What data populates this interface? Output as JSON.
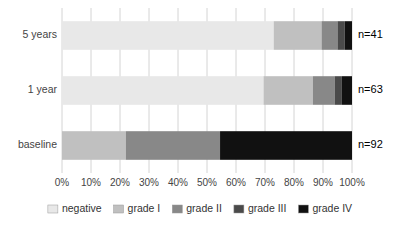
{
  "chart_data": {
    "type": "bar",
    "orientation": "horizontal",
    "stacked": true,
    "categories": [
      "baseline",
      "1 year",
      "5 years"
    ],
    "annotations": [
      "n=92",
      "n=63",
      "n=41"
    ],
    "series": [
      {
        "name": "negative",
        "color": "#e8e8e8",
        "values": [
          0.0,
          0.695,
          0.73
        ]
      },
      {
        "name": "grade I",
        "color": "#c0c0c0",
        "values": [
          0.22,
          0.17,
          0.165
        ]
      },
      {
        "name": "grade II",
        "color": "#888888",
        "values": [
          0.325,
          0.075,
          0.055
        ]
      },
      {
        "name": "grade III",
        "color": "#4a4a4a",
        "values": [
          0.0,
          0.025,
          0.025
        ]
      },
      {
        "name": "grade IV",
        "color": "#111111",
        "values": [
          0.455,
          0.035,
          0.025
        ]
      }
    ],
    "xlim": [
      0,
      1
    ],
    "xticks": [
      {
        "value": 0.0,
        "label": "0%"
      },
      {
        "value": 0.1,
        "label": "10%"
      },
      {
        "value": 0.2,
        "label": "20%"
      },
      {
        "value": 0.3,
        "label": "30%"
      },
      {
        "value": 0.4,
        "label": "40%"
      },
      {
        "value": 0.5,
        "label": "50%"
      },
      {
        "value": 0.6,
        "label": "60%"
      },
      {
        "value": 0.7,
        "label": "70%"
      },
      {
        "value": 0.8,
        "label": "80%"
      },
      {
        "value": 0.9,
        "label": "90%"
      },
      {
        "value": 1.0,
        "label": "100%"
      }
    ],
    "grid": true,
    "legend": "bottom"
  }
}
